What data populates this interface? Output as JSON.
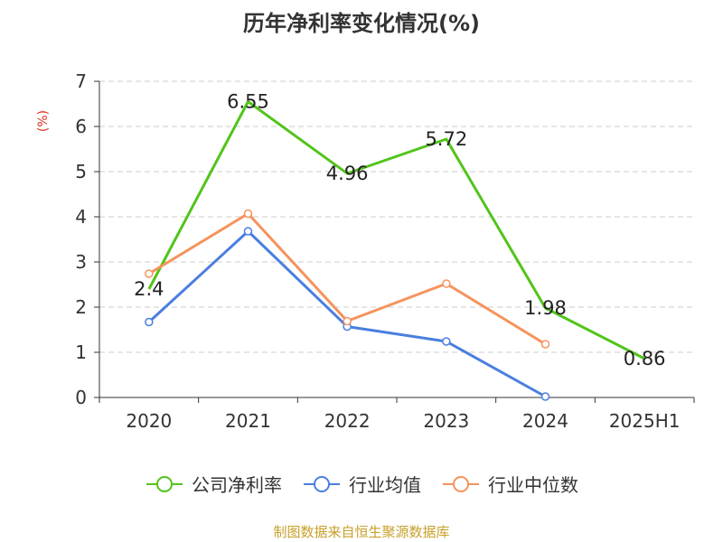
{
  "chart_data": {
    "type": "line",
    "title": "历年净利率变化情况(%)",
    "ylabel": "(%)",
    "categories": [
      "2020",
      "2021",
      "2022",
      "2023",
      "2024",
      "2025H1"
    ],
    "ylim": [
      0,
      7
    ],
    "yticks": [
      "0",
      "1",
      "2",
      "3",
      "4",
      "5",
      "6",
      "7"
    ],
    "grid": true,
    "legend_position": "bottom",
    "series": [
      {
        "name": "公司净利率",
        "color": "#52c41a",
        "values": [
          2.4,
          6.55,
          4.96,
          5.72,
          1.98,
          0.86
        ],
        "labels": [
          "2.4",
          "6.55",
          "4.96",
          "5.72",
          "1.98",
          "0.86"
        ],
        "show_markers": false
      },
      {
        "name": "行业均值",
        "color": "#4a7fe0",
        "values": [
          1.67,
          3.68,
          1.57,
          1.24,
          0.02,
          null
        ],
        "show_markers": true
      },
      {
        "name": "行业中位数",
        "color": "#f5935d",
        "values": [
          2.74,
          4.07,
          1.69,
          2.52,
          1.18,
          null
        ],
        "show_markers": true
      }
    ]
  },
  "footer": {
    "source": "制图数据来自恒生聚源数据库"
  }
}
